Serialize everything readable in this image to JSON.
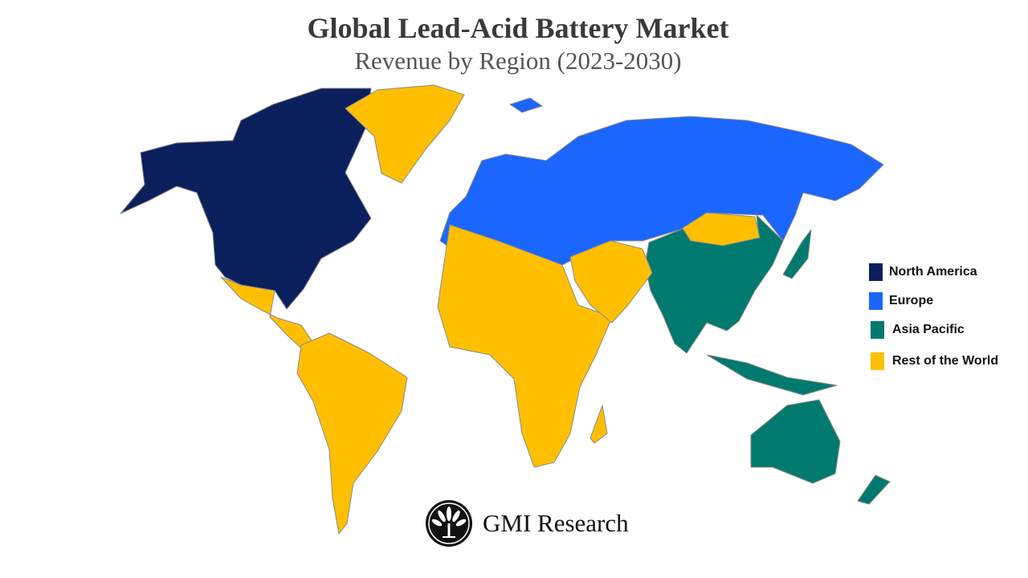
{
  "header": {
    "title": "Global Lead-Acid Battery Market",
    "subtitle": "Revenue by Region (2023-2030)"
  },
  "legend": {
    "items": [
      {
        "label": "North America",
        "color": "#0b1f5c"
      },
      {
        "label": "Europe",
        "color": "#1a66ff"
      },
      {
        "label": "Asia Pacific",
        "color": "#007a6e"
      },
      {
        "label": "Rest of the World",
        "color": "#ffbf00"
      }
    ]
  },
  "map": {
    "regions": {
      "north_america": "North America",
      "europe": "Europe",
      "asia_pacific": "Asia Pacific",
      "rest_of_world": "Rest of the World"
    },
    "border_color": "#8a8a8a"
  },
  "branding": {
    "logo_text": "GMI Research"
  }
}
